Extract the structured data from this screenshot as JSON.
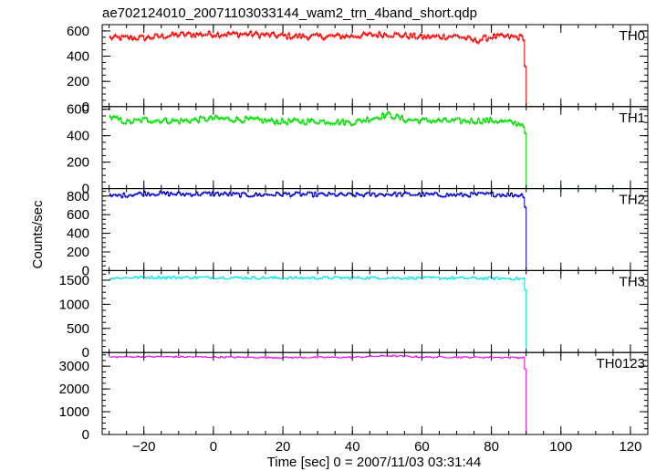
{
  "chart_data": {
    "type": "line",
    "title": "ae702124010_20071103033144_wam2_trn_4band_short.qdp",
    "xlabel": "Time [sec] 0 = 2007/11/03 03:31:44",
    "ylabel": "Counts/sec",
    "xlim": [
      -32,
      125
    ],
    "xticks": [
      -20,
      0,
      20,
      40,
      60,
      80,
      100,
      120
    ],
    "series_shape": {
      "x_start": -30,
      "x_step": 0.5,
      "x_drop": 90,
      "x_end": 122,
      "after_drop_level": 0
    },
    "panels": [
      {
        "name": "TH0",
        "color": "#ff0000",
        "ylim": [
          0,
          650
        ],
        "yticks": [
          0,
          200,
          400,
          600
        ],
        "base": 550,
        "noise": 30,
        "drop_step_value": 320,
        "anchors": [
          [
            -30,
            545
          ],
          [
            -20,
            545
          ],
          [
            -10,
            570
          ],
          [
            0,
            575
          ],
          [
            10,
            575
          ],
          [
            20,
            560
          ],
          [
            30,
            555
          ],
          [
            40,
            560
          ],
          [
            50,
            575
          ],
          [
            60,
            550
          ],
          [
            70,
            560
          ],
          [
            75,
            520
          ],
          [
            80,
            555
          ],
          [
            88,
            550
          ]
        ]
      },
      {
        "name": "TH1",
        "color": "#00dd00",
        "ylim": [
          0,
          620
        ],
        "yticks": [
          0,
          200,
          400,
          600
        ],
        "base": 510,
        "noise": 28,
        "drop_step_value": 420,
        "anchors": [
          [
            -30,
            540
          ],
          [
            -25,
            500
          ],
          [
            -20,
            520
          ],
          [
            -10,
            510
          ],
          [
            0,
            530
          ],
          [
            10,
            520
          ],
          [
            20,
            505
          ],
          [
            30,
            510
          ],
          [
            40,
            500
          ],
          [
            50,
            560
          ],
          [
            55,
            520
          ],
          [
            60,
            515
          ],
          [
            70,
            510
          ],
          [
            80,
            515
          ],
          [
            88,
            490
          ]
        ]
      },
      {
        "name": "TH2",
        "color": "#0000cc",
        "ylim": [
          0,
          880
        ],
        "yticks": [
          0,
          200,
          400,
          600,
          800
        ],
        "base": 810,
        "noise": 30,
        "drop_step_value": 680,
        "anchors": [
          [
            -30,
            795
          ],
          [
            -20,
            830
          ],
          [
            -10,
            820
          ],
          [
            0,
            825
          ],
          [
            10,
            810
          ],
          [
            20,
            820
          ],
          [
            30,
            815
          ],
          [
            40,
            810
          ],
          [
            50,
            820
          ],
          [
            60,
            815
          ],
          [
            70,
            810
          ],
          [
            80,
            820
          ],
          [
            88,
            810
          ]
        ]
      },
      {
        "name": "TH3",
        "color": "#00e5e5",
        "ylim": [
          0,
          1700
        ],
        "yticks": [
          0,
          500,
          1000,
          1500
        ],
        "base": 1550,
        "noise": 35,
        "drop_step_value": 1300,
        "anchors": [
          [
            -30,
            1540
          ],
          [
            -20,
            1560
          ],
          [
            0,
            1555
          ],
          [
            20,
            1545
          ],
          [
            40,
            1550
          ],
          [
            60,
            1545
          ],
          [
            80,
            1540
          ],
          [
            88,
            1530
          ]
        ]
      },
      {
        "name": "TH0123",
        "color": "#ee00ee",
        "ylim": [
          0,
          3600
        ],
        "yticks": [
          0,
          1000,
          2000,
          3000
        ],
        "base": 3400,
        "noise": 40,
        "drop_step_value": 2880,
        "anchors": [
          [
            -30,
            3400
          ],
          [
            -20,
            3420
          ],
          [
            0,
            3400
          ],
          [
            20,
            3380
          ],
          [
            40,
            3390
          ],
          [
            50,
            3460
          ],
          [
            60,
            3400
          ],
          [
            80,
            3390
          ],
          [
            88,
            3380
          ]
        ]
      }
    ]
  }
}
